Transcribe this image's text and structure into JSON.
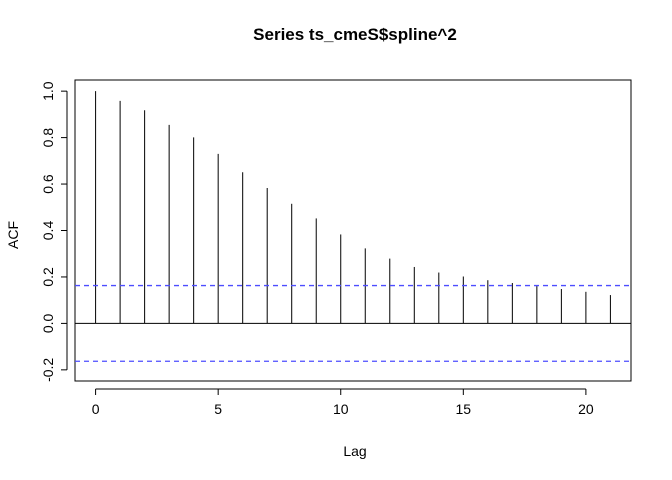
{
  "chart_data": {
    "type": "bar",
    "title": "Series  ts_cmeS$spline^2",
    "xlabel": "Lag",
    "ylabel": "ACF",
    "x": [
      0,
      1,
      2,
      3,
      4,
      5,
      6,
      7,
      8,
      9,
      10,
      11,
      12,
      13,
      14,
      15,
      16,
      17,
      18,
      19,
      20,
      21
    ],
    "values": [
      1.0,
      0.958,
      0.918,
      0.855,
      0.801,
      0.73,
      0.651,
      0.583,
      0.515,
      0.452,
      0.383,
      0.323,
      0.279,
      0.243,
      0.219,
      0.202,
      0.186,
      0.174,
      0.163,
      0.148,
      0.136,
      0.122
    ],
    "confidence_bound": 0.163,
    "xlim": [
      -0.84,
      21.84
    ],
    "ylim": [
      -0.2,
      1.0
    ],
    "x_ticks": [
      0,
      5,
      10,
      15,
      20
    ],
    "y_ticks": [
      -0.2,
      0.0,
      0.2,
      0.4,
      0.6,
      0.8,
      1.0
    ],
    "x_tick_labels": [
      "0",
      "5",
      "10",
      "15",
      "20"
    ],
    "y_tick_labels": [
      "-0.2",
      "0.0",
      "0.2",
      "0.4",
      "0.6",
      "0.8",
      "1.0"
    ],
    "grid": false,
    "legend": "none",
    "colors": {
      "bars": "#000000",
      "zero_line": "#000000",
      "confidence": "#4d4dff",
      "frame": "#000000"
    }
  }
}
